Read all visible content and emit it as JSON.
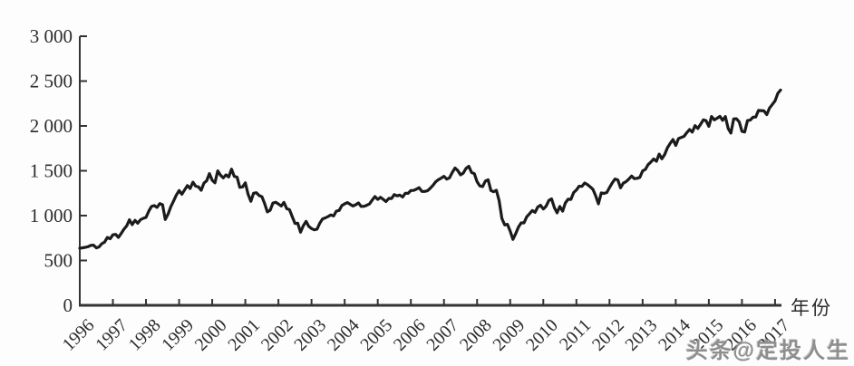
{
  "watermark": "头条@定投人生",
  "chart_data": {
    "type": "line",
    "title": "",
    "xlabel": "年份",
    "ylabel": "",
    "legend": null,
    "grid": false,
    "line_color": "#1b1b1b",
    "axis_color": "#333333",
    "xlim": [
      1996,
      2017.2
    ],
    "ylim": [
      0,
      3000
    ],
    "x_start": 1996,
    "points_per_year": 12,
    "x_ticks": [
      1996,
      1997,
      1998,
      1999,
      2000,
      2001,
      2002,
      2003,
      2004,
      2005,
      2006,
      2007,
      2008,
      2009,
      2010,
      2011,
      2012,
      2013,
      2014,
      2015,
      2016,
      2017
    ],
    "y_ticks": [
      0,
      500,
      1000,
      1500,
      2000,
      2500,
      3000
    ],
    "y_tick_labels": [
      "0",
      "500",
      "1 000",
      "1 500",
      "2 000",
      "2 500",
      "3 000"
    ],
    "values": [
      636,
      640,
      646,
      654,
      669,
      671,
      640,
      652,
      687,
      705,
      757,
      741,
      786,
      791,
      757,
      801,
      848,
      885,
      954,
      899,
      947,
      915,
      955,
      970,
      980,
      1049,
      1102,
      1112,
      1091,
      1134,
      1121,
      957,
      1017,
      1099,
      1164,
      1229,
      1280,
      1238,
      1286,
      1335,
      1302,
      1373,
      1329,
      1320,
      1283,
      1363,
      1389,
      1469,
      1394,
      1366,
      1499,
      1452,
      1421,
      1455,
      1431,
      1518,
      1437,
      1429,
      1315,
      1320,
      1366,
      1240,
      1160,
      1249,
      1256,
      1224,
      1211,
      1134,
      1041,
      1060,
      1139,
      1148,
      1130,
      1107,
      1147,
      1077,
      1067,
      990,
      912,
      916,
      815,
      886,
      936,
      880,
      856,
      841,
      848,
      917,
      964,
      975,
      990,
      1008,
      996,
      1051,
      1058,
      1112,
      1131,
      1145,
      1126,
      1107,
      1121,
      1141,
      1102,
      1104,
      1115,
      1130,
      1174,
      1212,
      1181,
      1204,
      1181,
      1157,
      1192,
      1191,
      1234,
      1220,
      1229,
      1207,
      1249,
      1248,
      1280,
      1281,
      1295,
      1311,
      1270,
      1270,
      1277,
      1304,
      1336,
      1378,
      1401,
      1418,
      1438,
      1407,
      1421,
      1482,
      1531,
      1503,
      1455,
      1474,
      1527,
      1549,
      1481,
      1468,
      1379,
      1331,
      1323,
      1386,
      1400,
      1280,
      1267,
      1283,
      1166,
      969,
      896,
      903,
      826,
      735,
      798,
      873,
      919,
      919,
      987,
      1021,
      1057,
      1036,
      1096,
      1115,
      1074,
      1104,
      1169,
      1187,
      1089,
      1031,
      1102,
      1049,
      1141,
      1183,
      1181,
      1258,
      1286,
      1327,
      1326,
      1364,
      1345,
      1321,
      1292,
      1219,
      1131,
      1253,
      1247,
      1258,
      1312,
      1366,
      1408,
      1398,
      1310,
      1362,
      1379,
      1407,
      1441,
      1412,
      1416,
      1426,
      1498,
      1515,
      1569,
      1598,
      1631,
      1606,
      1686,
      1633,
      1682,
      1757,
      1806,
      1848,
      1783,
      1859,
      1872,
      1884,
      1924,
      1960,
      1931,
      2003,
      1972,
      2018,
      2068,
      2059,
      1995,
      2105,
      2068,
      2086,
      2107,
      2063,
      2104,
      1972,
      1920,
      2079,
      2080,
      2044,
      1940,
      1932,
      2060,
      2065,
      2097,
      2099,
      2174,
      2171,
      2168,
      2126,
      2199,
      2239,
      2279,
      2364,
      2400
    ]
  }
}
